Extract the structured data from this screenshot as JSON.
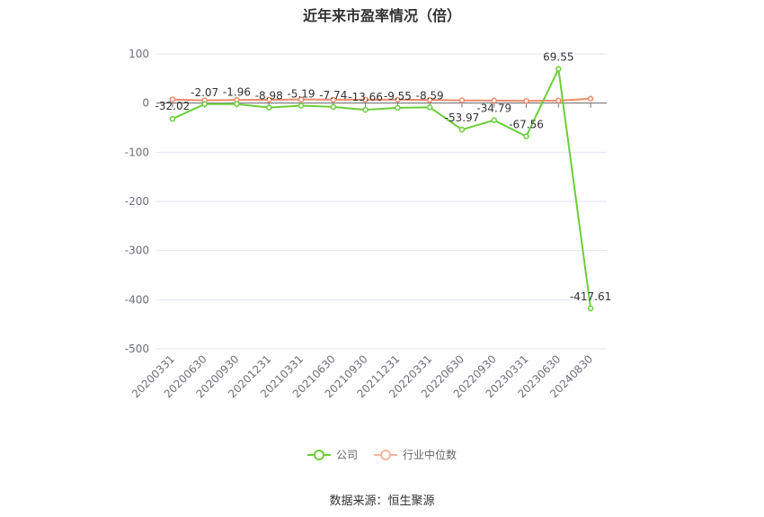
{
  "title": "近年来市盈率情况（倍）",
  "source": "数据来源：恒生聚源",
  "colors": {
    "company": "#6cce3a",
    "industry": "#f08a6a"
  },
  "chart_data": {
    "type": "line",
    "categories": [
      "20200331",
      "20200630",
      "20200930",
      "20201231",
      "20210331",
      "20210630",
      "20210930",
      "20211231",
      "20220331",
      "20220630",
      "20220930",
      "20230331",
      "20230630",
      "20240830"
    ],
    "series": [
      {
        "name": "公司",
        "values": [
          -32.02,
          -2.07,
          -1.96,
          -8.98,
          -5.19,
          -7.74,
          -13.66,
          -9.55,
          -8.59,
          -53.97,
          -34.79,
          -67.56,
          69.55,
          -417.61
        ]
      },
      {
        "name": "行业中位数",
        "values": [
          7.5,
          5.5,
          6.5,
          7.0,
          7.5,
          7.0,
          7.0,
          7.0,
          6.5,
          5.5,
          5.0,
          4.5,
          5.0,
          9.0
        ]
      }
    ],
    "ylim": [
      -500,
      100
    ],
    "yticks": [
      100,
      0,
      -100,
      -200,
      -300,
      -400,
      -500
    ],
    "data_labels": [
      "-32.02",
      "-2.07",
      "-1.96",
      "-8.98",
      "-5.19",
      "-7.74",
      "-13.66",
      "-9.55",
      "-8.59",
      "-53.97",
      "-34.79",
      "-67.56",
      "69.55",
      "-417.61"
    ],
    "grid": true,
    "legend": "bottom"
  }
}
